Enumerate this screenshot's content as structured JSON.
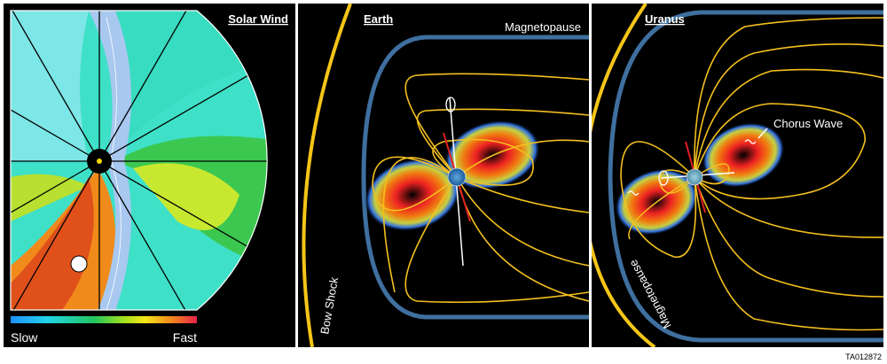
{
  "panels": {
    "solar_wind": {
      "title": "Solar Wind",
      "scale_low": "Slow",
      "scale_high": "Fast",
      "scale_colors": [
        "#1e90ff",
        "#22d4e6",
        "#22c55e",
        "#9be020",
        "#f5e61a",
        "#f08a1a",
        "#e8244a"
      ]
    },
    "earth": {
      "title": "Earth",
      "magnetopause_label": "Magnetopause",
      "bow_shock_label": "Bow Shock"
    },
    "uranus": {
      "title": "Uranus",
      "chorus_label": "Chorus Wave",
      "magnetopause_label": "Magnetopause"
    }
  },
  "colors": {
    "background": "#000000",
    "bow_shock": "#f5c518",
    "magnetopause": "#3f6f9f",
    "field_lines": "#f4c01e",
    "spin_axis": "#e02020"
  },
  "footer": {
    "code": "TA012872"
  }
}
